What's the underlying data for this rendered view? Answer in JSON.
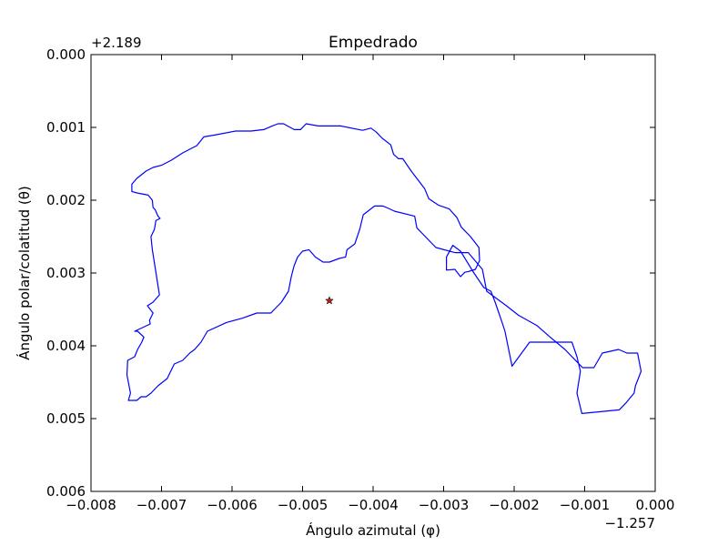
{
  "chart_data": {
    "type": "line",
    "title": "Empedrado",
    "xlabel": "Ángulo azimutal (φ)",
    "ylabel": "Ángulo polar/colatitud (θ)",
    "x_offset_label": "−1.257",
    "y_offset_label": "+2.189",
    "xlim": [
      -0.008,
      0.0
    ],
    "ylim": [
      0.006,
      0.0
    ],
    "y_inverted": true,
    "x_ticks": [
      -0.008,
      -0.007,
      -0.006,
      -0.005,
      -0.004,
      -0.003,
      -0.002,
      -0.001,
      0.0
    ],
    "x_tick_labels": [
      "−0.008",
      "−0.007",
      "−0.006",
      "−0.005",
      "−0.004",
      "−0.003",
      "−0.002",
      "−0.001",
      "0.000"
    ],
    "y_ticks": [
      0.0,
      0.001,
      0.002,
      0.003,
      0.004,
      0.005,
      0.006
    ],
    "y_tick_labels": [
      "0.000",
      "0.001",
      "0.002",
      "0.003",
      "0.004",
      "0.005",
      "0.006"
    ],
    "grid": false,
    "series": [
      {
        "color": "#0000ff",
        "x": [
          -0.00478,
          -0.00495,
          -0.00503,
          -0.00512,
          -0.00527,
          -0.00535,
          -0.00543,
          -0.00555,
          -0.00573,
          -0.00595,
          -0.00622,
          -0.0064,
          -0.0065,
          -0.0067,
          -0.00686,
          -0.007,
          -0.00712,
          -0.00722,
          -0.00735,
          -0.00742,
          -0.00742,
          -0.00735,
          -0.00719,
          -0.00713,
          -0.00712,
          -0.00709,
          -0.00705,
          -0.00702,
          -0.00708,
          -0.0071,
          -0.00715,
          -0.00713,
          -0.00703,
          -0.00712,
          -0.0072,
          -0.00712,
          -0.00717,
          -0.00716,
          -0.00727,
          -0.00738,
          -0.00734,
          -0.00725,
          -0.00728,
          -0.00734,
          -0.00738,
          -0.00748,
          -0.00749,
          -0.00744,
          -0.00747,
          -0.00735,
          -0.00729,
          -0.00722,
          -0.00715,
          -0.00705,
          -0.00692,
          -0.00682,
          -0.0067,
          -0.0066,
          -0.00653,
          -0.00644,
          -0.00635,
          -0.00608,
          -0.00585,
          -0.00565,
          -0.00545,
          -0.0053,
          -0.0052,
          -0.00516,
          -0.00512,
          -0.00507,
          -0.005,
          -0.00491,
          -0.00482,
          -0.00471,
          -0.00462,
          -0.00448,
          -0.00439,
          -0.00437,
          -0.00426,
          -0.00419,
          -0.00414,
          -0.00398,
          -0.00386,
          -0.00381,
          -0.0037,
          -0.00341,
          -0.00338,
          -0.00331,
          -0.00311,
          -0.00284,
          -0.00265,
          -0.00245,
          -0.00239,
          -0.00211,
          -0.00194,
          -0.00168,
          -0.00149,
          -0.00128,
          -0.00103,
          -0.00087,
          -0.00075,
          -0.00052,
          -0.0004,
          -0.00025,
          -0.0002,
          -0.00028,
          -0.0003,
          -0.00041,
          -0.00051,
          -0.00104,
          -0.00111,
          -0.00106,
          -0.00111,
          -0.00118,
          -0.00178,
          -0.00203,
          -0.00213,
          -0.00217,
          -0.00227,
          -0.00233,
          -0.00243,
          -0.00257,
          -0.00276,
          -0.00287,
          -0.00296,
          -0.00296,
          -0.00284,
          -0.00276,
          -0.0027,
          -0.00265,
          -0.00255,
          -0.00249,
          -0.0025,
          -0.00262,
          -0.00275,
          -0.00281,
          -0.00292,
          -0.00307,
          -0.00321,
          -0.00327,
          -0.00346,
          -0.00358,
          -0.00364,
          -0.00371,
          -0.00375,
          -0.00387,
          -0.00396,
          -0.00403,
          -0.00415,
          -0.00446,
          -0.00478
        ],
        "y": [
          0.00098,
          0.00095,
          0.00103,
          0.00103,
          0.00095,
          0.00095,
          0.00098,
          0.00103,
          0.00105,
          0.00105,
          0.0011,
          0.00113,
          0.00125,
          0.00135,
          0.00145,
          0.00152,
          0.00155,
          0.0016,
          0.0017,
          0.00178,
          0.00188,
          0.0019,
          0.00193,
          0.002,
          0.0021,
          0.00213,
          0.00222,
          0.00225,
          0.00228,
          0.0024,
          0.0025,
          0.00268,
          0.0033,
          0.0034,
          0.00345,
          0.00355,
          0.00365,
          0.0037,
          0.00375,
          0.0038,
          0.0038,
          0.00388,
          0.00395,
          0.00405,
          0.00415,
          0.0042,
          0.0044,
          0.00465,
          0.00475,
          0.00475,
          0.0047,
          0.0047,
          0.00465,
          0.00455,
          0.00445,
          0.00425,
          0.0042,
          0.0041,
          0.00405,
          0.00395,
          0.0038,
          0.00368,
          0.00362,
          0.00355,
          0.00355,
          0.0034,
          0.00325,
          0.00305,
          0.0029,
          0.00278,
          0.0027,
          0.00268,
          0.00278,
          0.00285,
          0.00285,
          0.0028,
          0.00278,
          0.00268,
          0.0026,
          0.0024,
          0.0022,
          0.00208,
          0.00208,
          0.0021,
          0.00215,
          0.00222,
          0.00238,
          0.00245,
          0.00265,
          0.00272,
          0.00272,
          0.00295,
          0.00325,
          0.00345,
          0.00358,
          0.00372,
          0.00388,
          0.00405,
          0.0043,
          0.0043,
          0.0041,
          0.00405,
          0.0041,
          0.0041,
          0.00435,
          0.00455,
          0.00465,
          0.00478,
          0.00488,
          0.00493,
          0.00465,
          0.00435,
          0.00415,
          0.00395,
          0.00395,
          0.00428,
          0.0038,
          0.00368,
          0.0034,
          0.00325,
          0.0032,
          0.003,
          0.0027,
          0.00262,
          0.00278,
          0.00296,
          0.00295,
          0.00305,
          0.00299,
          0.00298,
          0.00295,
          0.00283,
          0.00265,
          0.0025,
          0.00237,
          0.00224,
          0.00212,
          0.00207,
          0.00198,
          0.00184,
          0.0016,
          0.00143,
          0.00143,
          0.00137,
          0.00124,
          0.00115,
          0.00106,
          0.00101,
          0.00104,
          0.00098,
          0.00098
        ]
      }
    ],
    "marker": {
      "x": -0.00462,
      "y": 0.00338,
      "symbol": "star",
      "color": "#b22222"
    },
    "colors": {
      "axes": "#000000",
      "background": "#ffffff",
      "line": "#0000ff",
      "marker": "#b22222"
    }
  }
}
